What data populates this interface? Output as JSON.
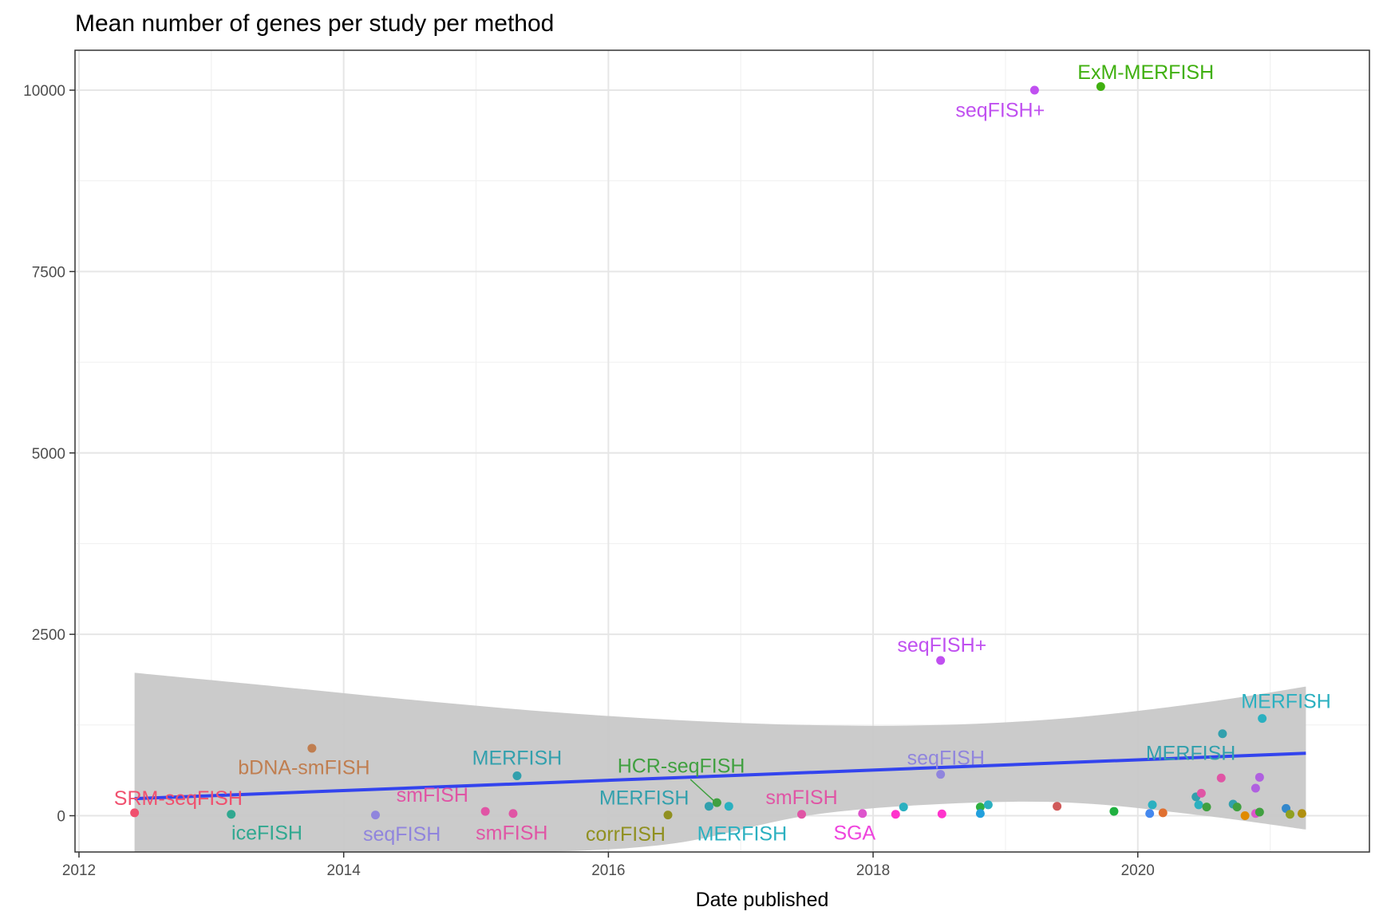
{
  "chart_data": {
    "type": "scatter",
    "title": "Mean number of genes per study per method",
    "xlabel": "Date published",
    "ylabel": "",
    "xlim": [
      2011.97,
      2021.75
    ],
    "ylim": [
      -500,
      10550
    ],
    "x_ticks": [
      2012,
      2014,
      2016,
      2018,
      2020
    ],
    "x_tick_labels": [
      "2012",
      "2014",
      "2016",
      "2018",
      "2020"
    ],
    "y_ticks": [
      0,
      2500,
      5000,
      7500,
      10000
    ],
    "y_tick_labels": [
      "0",
      "2500",
      "5000",
      "7500",
      "10000"
    ],
    "grid": true,
    "legend": "none",
    "trend": {
      "x": [
        2012.42,
        2021.27
      ],
      "y": [
        235,
        860
      ],
      "color": "#3344ee"
    },
    "confidence_band": {
      "x": [
        2012.42,
        2013.5,
        2014.5,
        2015.5,
        2016.5,
        2017.5,
        2018.5,
        2019.5,
        2020.5,
        2021.27
      ],
      "upper": [
        1970,
        1780,
        1600,
        1440,
        1320,
        1250,
        1250,
        1350,
        1560,
        1780
      ],
      "lower": [
        -500,
        -500,
        -500,
        -500,
        -380,
        0,
        160,
        180,
        0,
        -190
      ],
      "color": "#c8c8c8"
    },
    "points": [
      {
        "x": 2012.42,
        "y": 40,
        "color": "#f0506e"
      },
      {
        "x": 2013.15,
        "y": 20,
        "color": "#30a890"
      },
      {
        "x": 2013.76,
        "y": 930,
        "color": "#c07e50"
      },
      {
        "x": 2014.24,
        "y": 10,
        "color": "#9085dd"
      },
      {
        "x": 2015.07,
        "y": 60,
        "color": "#e055a5"
      },
      {
        "x": 2015.28,
        "y": 30,
        "color": "#e055a5"
      },
      {
        "x": 2015.31,
        "y": 550,
        "color": "#32a0ad"
      },
      {
        "x": 2016.45,
        "y": 10,
        "color": "#909020"
      },
      {
        "x": 2016.76,
        "y": 130,
        "color": "#32a0ad"
      },
      {
        "x": 2016.82,
        "y": 180,
        "color": "#40a040"
      },
      {
        "x": 2016.91,
        "y": 130,
        "color": "#2bb0c0"
      },
      {
        "x": 2017.46,
        "y": 20,
        "color": "#e055a5"
      },
      {
        "x": 2017.92,
        "y": 30,
        "color": "#dd55cc"
      },
      {
        "x": 2018.17,
        "y": 20,
        "color": "#ff33cc"
      },
      {
        "x": 2018.23,
        "y": 120,
        "color": "#2bb0c0"
      },
      {
        "x": 2018.51,
        "y": 2140,
        "color": "#c050f0"
      },
      {
        "x": 2018.51,
        "y": 570,
        "color": "#9085dd"
      },
      {
        "x": 2018.52,
        "y": 25,
        "color": "#ff33cc"
      },
      {
        "x": 2018.81,
        "y": 120,
        "color": "#30b040"
      },
      {
        "x": 2018.81,
        "y": 30,
        "color": "#22a0dd"
      },
      {
        "x": 2018.87,
        "y": 150,
        "color": "#2bb0c0"
      },
      {
        "x": 2019.22,
        "y": 10000,
        "color": "#c050f0"
      },
      {
        "x": 2019.39,
        "y": 130,
        "color": "#d05a5a"
      },
      {
        "x": 2019.72,
        "y": 10050,
        "color": "#40b010"
      },
      {
        "x": 2019.82,
        "y": 60,
        "color": "#20b040"
      },
      {
        "x": 2020.09,
        "y": 30,
        "color": "#4488ee"
      },
      {
        "x": 2020.11,
        "y": 150,
        "color": "#2bb0c0"
      },
      {
        "x": 2020.19,
        "y": 40,
        "color": "#e07030"
      },
      {
        "x": 2020.44,
        "y": 260,
        "color": "#32a0ad"
      },
      {
        "x": 2020.46,
        "y": 150,
        "color": "#2bb0c0"
      },
      {
        "x": 2020.48,
        "y": 310,
        "color": "#e055a5"
      },
      {
        "x": 2020.52,
        "y": 120,
        "color": "#40a040"
      },
      {
        "x": 2020.63,
        "y": 520,
        "color": "#e055a5"
      },
      {
        "x": 2020.64,
        "y": 1130,
        "color": "#32a0ad"
      },
      {
        "x": 2020.72,
        "y": 160,
        "color": "#32a0ad"
      },
      {
        "x": 2020.75,
        "y": 120,
        "color": "#40a040"
      },
      {
        "x": 2020.81,
        "y": 0,
        "color": "#e08a00"
      },
      {
        "x": 2020.89,
        "y": 380,
        "color": "#b060e0"
      },
      {
        "x": 2020.89,
        "y": 30,
        "color": "#dd55cc"
      },
      {
        "x": 2020.92,
        "y": 530,
        "color": "#b060e0"
      },
      {
        "x": 2020.92,
        "y": 50,
        "color": "#40a040"
      },
      {
        "x": 2020.94,
        "y": 1340,
        "color": "#2bb0c0"
      },
      {
        "x": 2021.12,
        "y": 100,
        "color": "#3388cc"
      },
      {
        "x": 2021.15,
        "y": 20,
        "color": "#90a020"
      },
      {
        "x": 2021.24,
        "y": 30,
        "color": "#b09010"
      }
    ],
    "labels": [
      {
        "text": "SRM-seqFISH",
        "x": 2012.75,
        "y": 235,
        "color": "#f0506e"
      },
      {
        "text": "iceFISH",
        "x": 2013.42,
        "y": -240,
        "color": "#30a890"
      },
      {
        "text": "bDNA-smFISH",
        "x": 2013.7,
        "y": 660,
        "color": "#c07e50"
      },
      {
        "text": "seqFISH",
        "x": 2014.44,
        "y": -260,
        "color": "#9085dd"
      },
      {
        "text": "smFISH",
        "x": 2014.67,
        "y": 280,
        "color": "#e055a5"
      },
      {
        "text": "smFISH",
        "x": 2015.27,
        "y": -240,
        "color": "#e055a5"
      },
      {
        "text": "MERFISH",
        "x": 2015.31,
        "y": 790,
        "color": "#32a0ad"
      },
      {
        "text": "corrFISH",
        "x": 2016.13,
        "y": -260,
        "color": "#909020"
      },
      {
        "text": "MERFISH",
        "x": 2016.27,
        "y": 240,
        "color": "#32a0ad"
      },
      {
        "text": "HCR-seqFISH",
        "x": 2016.55,
        "y": 680,
        "color": "#40a040"
      },
      {
        "text": "MERFISH",
        "x": 2017.01,
        "y": -250,
        "color": "#2bb0c0"
      },
      {
        "text": "smFISH",
        "x": 2017.46,
        "y": 250,
        "color": "#e055a5"
      },
      {
        "text": "SGA",
        "x": 2017.86,
        "y": -240,
        "color": "#ee44dd"
      },
      {
        "text": "seqFISH+",
        "x": 2018.52,
        "y": 2350,
        "color": "#c050f0"
      },
      {
        "text": "seqFISH",
        "x": 2018.55,
        "y": 790,
        "color": "#9085dd"
      },
      {
        "text": "seqFISH+",
        "x": 2018.96,
        "y": 9720,
        "color": "#c050f0"
      },
      {
        "text": "ExM-MERFISH",
        "x": 2020.06,
        "y": 10240,
        "color": "#40b010"
      },
      {
        "text": "MERFISH",
        "x": 2020.4,
        "y": 860,
        "color": "#32a0ad"
      },
      {
        "text": "MERFISH",
        "x": 2021.12,
        "y": 1570,
        "color": "#2bb0c0"
      }
    ],
    "leader_lines": [
      {
        "x1": 2016.62,
        "y1": 500,
        "x2": 2016.8,
        "y2": 200,
        "color": "#40a040"
      }
    ]
  }
}
